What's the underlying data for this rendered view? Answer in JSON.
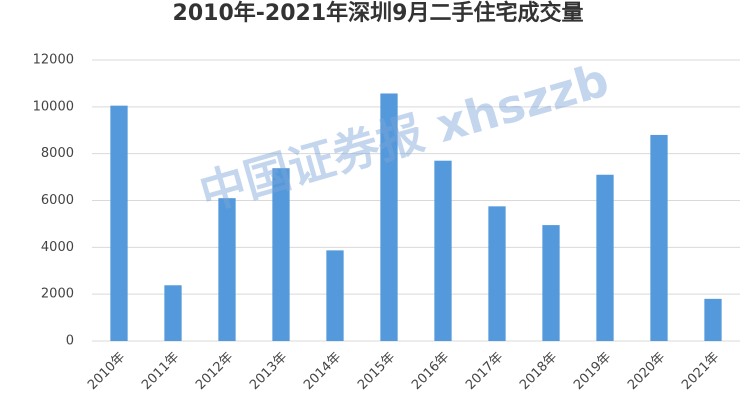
{
  "chart_data": {
    "type": "bar",
    "title": "2010年-2021年深圳9月二手住宅成交量",
    "watermark": "中国证券报 xhszzb",
    "categories": [
      "2010年",
      "2011年",
      "2012年",
      "2013年",
      "2014年",
      "2015年",
      "2016年",
      "2017年",
      "2018年",
      "2019年",
      "2020年",
      "2021年"
    ],
    "values": [
      10050,
      2380,
      6100,
      7380,
      3870,
      10570,
      7700,
      5750,
      4950,
      7100,
      8800,
      1800
    ],
    "color": "#5399db",
    "ylim": [
      0,
      12000
    ],
    "yticks": [
      0,
      2000,
      4000,
      6000,
      8000,
      10000,
      12000
    ],
    "grid": true
  }
}
